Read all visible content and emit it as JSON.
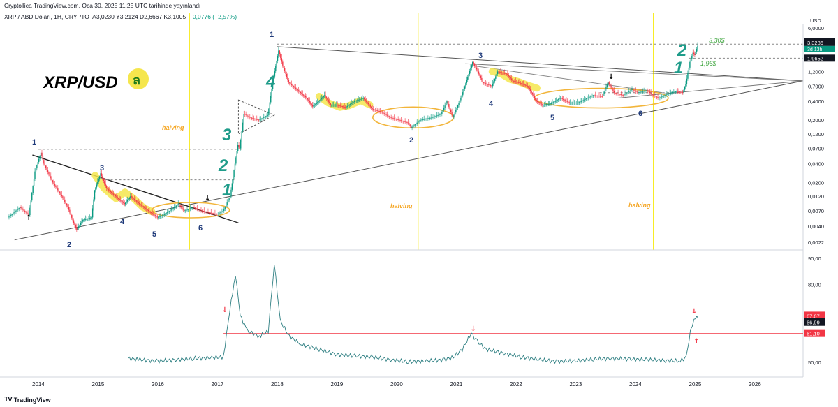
{
  "header": {
    "published": "Cryptollica TradingView.com, Oca 30, 2025 11:25 UTC tarihinde yayınlandı",
    "symbol": "XRP / ABD Doları, 1H, CRYPTO",
    "ohlc": "A3,0230  Y3,2124  D2,6667  K3,1005",
    "change": "+0,0776 (+2,57%)"
  },
  "footer": {
    "brand": "TradingView"
  },
  "colors": {
    "candle_up": "#089981",
    "candle_down": "#f23645",
    "price_line": "#4a4a4a",
    "indicator": "#2e7f82",
    "halving": "#f6e800",
    "highlight": "#f5e64d",
    "ellipse": "#f2b53b",
    "ann_wave": "#1f9c8a",
    "ann_label": "#1f3a7a",
    "ann_halving": "#f5a623",
    "target": "#3ea53e",
    "hline": "#f23645"
  },
  "chart_data": [
    {
      "type": "line",
      "title": "XRP/USD",
      "currency_label": "USD",
      "scale": "log",
      "x_ticks": [
        "2014",
        "2015",
        "2016",
        "2017",
        "2018",
        "2019",
        "2020",
        "2021",
        "2022",
        "2023",
        "2024",
        "2025",
        "2026"
      ],
      "y_ticks": [
        "6,0000",
        "3,3286",
        "1,9652",
        "1,2000",
        "0,7000",
        "0,4000",
        "0,2000",
        "0,1200",
        "0,0700",
        "0,0400",
        "0,0200",
        "0,0120",
        "0,0070",
        "0,0040",
        "0,0022"
      ],
      "last_price_label": "3,3286",
      "countdown_label": "3d 13h",
      "level_label": "1,9652",
      "series": [
        {
          "values": [
            [
              2013.5,
              0.0055
            ],
            [
              2013.7,
              0.008
            ],
            [
              2013.85,
              0.006
            ],
            [
              2013.95,
              0.03
            ],
            [
              2014.05,
              0.06
            ],
            [
              2014.1,
              0.04
            ],
            [
              2014.25,
              0.02
            ],
            [
              2014.4,
              0.012
            ],
            [
              2014.5,
              0.008
            ],
            [
              2014.6,
              0.0045
            ],
            [
              2014.65,
              0.0035
            ],
            [
              2014.75,
              0.005
            ],
            [
              2014.9,
              0.0055
            ],
            [
              2014.95,
              0.015
            ],
            [
              2015.05,
              0.028
            ],
            [
              2015.15,
              0.016
            ],
            [
              2015.3,
              0.012
            ],
            [
              2015.45,
              0.009
            ],
            [
              2015.55,
              0.012
            ],
            [
              2015.7,
              0.009
            ],
            [
              2015.85,
              0.007
            ],
            [
              2016.0,
              0.0055
            ],
            [
              2016.1,
              0.006
            ],
            [
              2016.25,
              0.0075
            ],
            [
              2016.35,
              0.009
            ],
            [
              2016.45,
              0.007
            ],
            [
              2016.6,
              0.008
            ],
            [
              2016.75,
              0.007
            ],
            [
              2016.9,
              0.0065
            ],
            [
              2017.0,
              0.0062
            ],
            [
              2017.1,
              0.007
            ],
            [
              2017.22,
              0.012
            ],
            [
              2017.3,
              0.04
            ],
            [
              2017.35,
              0.08
            ],
            [
              2017.38,
              0.07
            ],
            [
              2017.45,
              0.25
            ],
            [
              2017.55,
              0.22
            ],
            [
              2017.7,
              0.2
            ],
            [
              2017.85,
              0.24
            ],
            [
              2017.95,
              1.0
            ],
            [
              2018.03,
              2.6
            ],
            [
              2018.1,
              1.5
            ],
            [
              2018.2,
              0.8
            ],
            [
              2018.35,
              0.6
            ],
            [
              2018.5,
              0.45
            ],
            [
              2018.6,
              0.33
            ],
            [
              2018.7,
              0.4
            ],
            [
              2018.8,
              0.5
            ],
            [
              2018.9,
              0.35
            ],
            [
              2019.0,
              0.35
            ],
            [
              2019.15,
              0.32
            ],
            [
              2019.3,
              0.4
            ],
            [
              2019.45,
              0.45
            ],
            [
              2019.6,
              0.3
            ],
            [
              2019.75,
              0.27
            ],
            [
              2019.9,
              0.22
            ],
            [
              2020.05,
              0.2
            ],
            [
              2020.2,
              0.18
            ],
            [
              2020.25,
              0.15
            ],
            [
              2020.4,
              0.2
            ],
            [
              2020.6,
              0.22
            ],
            [
              2020.75,
              0.25
            ],
            [
              2020.85,
              0.4
            ],
            [
              2020.95,
              0.22
            ],
            [
              2021.1,
              0.5
            ],
            [
              2021.28,
              1.7
            ],
            [
              2021.35,
              1.3
            ],
            [
              2021.45,
              0.8
            ],
            [
              2021.6,
              0.7
            ],
            [
              2021.7,
              1.2
            ],
            [
              2021.85,
              1.1
            ],
            [
              2021.95,
              0.85
            ],
            [
              2022.05,
              0.8
            ],
            [
              2022.2,
              0.7
            ],
            [
              2022.35,
              0.4
            ],
            [
              2022.45,
              0.35
            ],
            [
              2022.6,
              0.37
            ],
            [
              2022.75,
              0.45
            ],
            [
              2022.9,
              0.38
            ],
            [
              2023.05,
              0.38
            ],
            [
              2023.2,
              0.45
            ],
            [
              2023.3,
              0.5
            ],
            [
              2023.45,
              0.48
            ],
            [
              2023.55,
              0.8
            ],
            [
              2023.65,
              0.55
            ],
            [
              2023.8,
              0.5
            ],
            [
              2023.95,
              0.62
            ],
            [
              2024.05,
              0.55
            ],
            [
              2024.2,
              0.6
            ],
            [
              2024.3,
              0.5
            ],
            [
              2024.4,
              0.45
            ],
            [
              2024.5,
              0.5
            ],
            [
              2024.6,
              0.55
            ],
            [
              2024.7,
              0.58
            ],
            [
              2024.8,
              0.55
            ],
            [
              2024.85,
              0.75
            ],
            [
              2024.92,
              1.7
            ],
            [
              2024.97,
              2.4
            ],
            [
              2025.0,
              2.2
            ],
            [
              2025.05,
              3.1
            ]
          ]
        }
      ]
    },
    {
      "type": "line",
      "y_ticks": [
        "90,00",
        "80,00",
        "50,00"
      ],
      "value_labels": [
        "67,07",
        "66,99",
        "61,10"
      ],
      "hlines": [
        67.07,
        61.1
      ],
      "series": [
        {
          "values": [
            [
              2015.5,
              51.5
            ],
            [
              2015.7,
              51
            ],
            [
              2016.0,
              50.5
            ],
            [
              2016.3,
              51
            ],
            [
              2016.6,
              51.5
            ],
            [
              2016.9,
              51.8
            ],
            [
              2017.1,
              52
            ],
            [
              2017.18,
              66
            ],
            [
              2017.3,
              84
            ],
            [
              2017.38,
              68
            ],
            [
              2017.5,
              62
            ],
            [
              2017.7,
              60
            ],
            [
              2017.85,
              62
            ],
            [
              2017.95,
              88
            ],
            [
              2018.05,
              66
            ],
            [
              2018.2,
              60
            ],
            [
              2018.4,
              57
            ],
            [
              2018.7,
              55
            ],
            [
              2019.0,
              53
            ],
            [
              2019.3,
              52.5
            ],
            [
              2019.6,
              52
            ],
            [
              2019.9,
              51
            ],
            [
              2020.2,
              50.2
            ],
            [
              2020.5,
              50.5
            ],
            [
              2020.8,
              51
            ],
            [
              2020.95,
              52
            ],
            [
              2021.1,
              55
            ],
            [
              2021.25,
              61.2
            ],
            [
              2021.35,
              58
            ],
            [
              2021.5,
              55
            ],
            [
              2021.8,
              53.5
            ],
            [
              2022.1,
              52
            ],
            [
              2022.4,
              51
            ],
            [
              2022.7,
              50.3
            ],
            [
              2023.0,
              50.5
            ],
            [
              2023.3,
              51.2
            ],
            [
              2023.6,
              51.5
            ],
            [
              2023.9,
              51.2
            ],
            [
              2024.2,
              51
            ],
            [
              2024.5,
              50.7
            ],
            [
              2024.75,
              50.5
            ],
            [
              2024.85,
              52
            ],
            [
              2024.92,
              62
            ],
            [
              2024.98,
              67
            ],
            [
              2025.05,
              66.99
            ]
          ]
        }
      ]
    }
  ],
  "annotations": {
    "title": "XRP/USD",
    "waves": [
      "1",
      "2",
      "3",
      "4",
      "1",
      "2",
      "3",
      "4",
      "2",
      "1"
    ],
    "labels": [
      "1",
      "3",
      "4",
      "5",
      "2",
      "6",
      "1",
      "3",
      "4",
      "2",
      "5",
      "6"
    ],
    "halving": [
      "halving",
      "halving",
      "halving"
    ],
    "targets": [
      "3,30$",
      "1,96$"
    ]
  }
}
